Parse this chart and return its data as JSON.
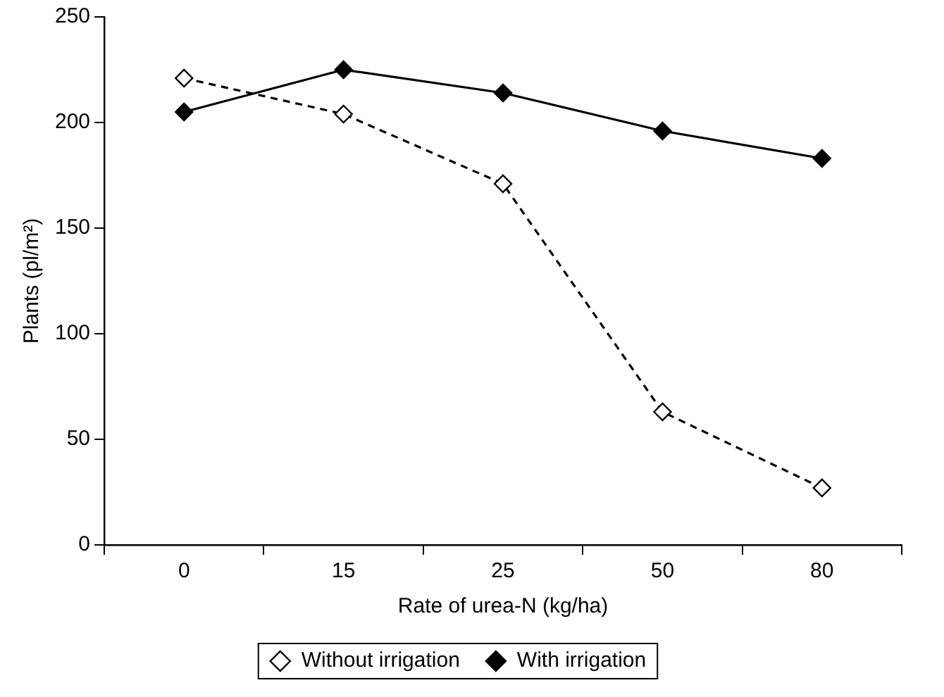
{
  "chart_data": {
    "type": "line",
    "xlabel": "Rate of urea-N (kg/ha)",
    "ylabel": "Plants (pl/m²)",
    "categories": [
      "0",
      "15",
      "25",
      "50",
      "80"
    ],
    "series": [
      {
        "name": "Without irrigation",
        "color": "#000000",
        "line_style": "dashed",
        "values": [
          221,
          204,
          171,
          63,
          27
        ]
      },
      {
        "name": "With irrigation",
        "color": "#000000",
        "line_style": "solid",
        "values": [
          205,
          225,
          214,
          196,
          183
        ]
      }
    ],
    "ylim": [
      0,
      250
    ],
    "yticks": [
      0,
      50,
      100,
      150,
      200,
      250
    ],
    "grid": false,
    "legend": "bottom",
    "marker": "diamond"
  }
}
